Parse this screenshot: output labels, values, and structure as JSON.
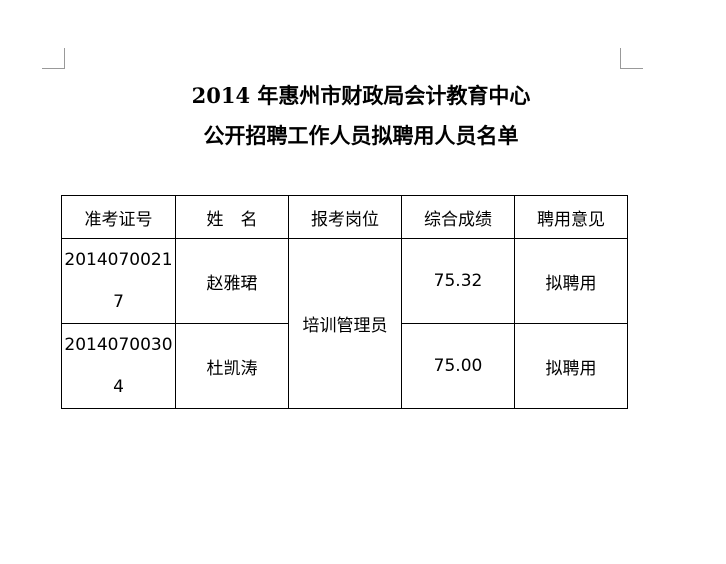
{
  "title_line1": "2014 年惠州市财政局会计教育中心",
  "title_line2": "公开招聘工作人员拟聘用人员名单",
  "table": {
    "headers": [
      "准考证号",
      "姓　名",
      "报考岗位",
      "综合成绩",
      "聘用意见"
    ],
    "position": "培训管理员",
    "rows": [
      {
        "id": "20140700217",
        "name": "赵雅珺",
        "score": "75.32",
        "opinion": "拟聘用"
      },
      {
        "id": "20140700304",
        "name": "杜凯涛",
        "score": "75.00",
        "opinion": "拟聘用"
      }
    ]
  }
}
